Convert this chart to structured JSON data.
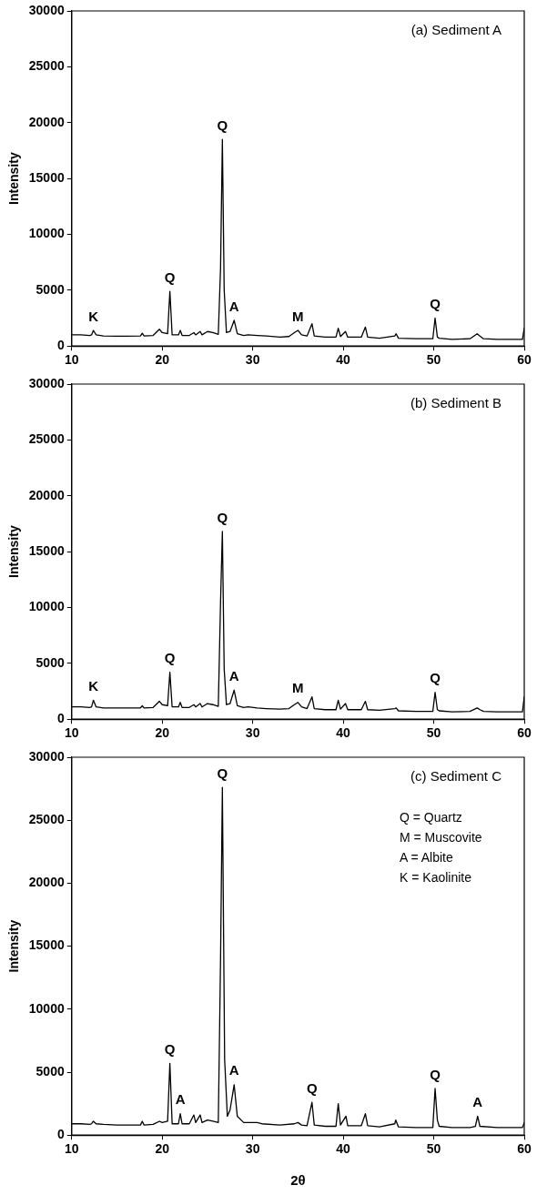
{
  "chart_data": [
    {
      "type": "line",
      "title": "(a) Sediment A",
      "ylabel": "Intensity",
      "xlim": [
        10,
        60
      ],
      "xticks": [
        10,
        20,
        30,
        40,
        50,
        60
      ],
      "ylim": [
        0,
        30000
      ],
      "yticks": [
        0,
        5000,
        10000,
        15000,
        20000,
        25000,
        30000
      ],
      "marker": "none",
      "line_style": "solid",
      "legend": false,
      "annotations": [
        {
          "text": "K",
          "x": 12.4,
          "y": 1400
        },
        {
          "text": "Q",
          "x": 20.85,
          "y": 4900
        },
        {
          "text": "Q",
          "x": 26.65,
          "y": 18500
        },
        {
          "text": "A",
          "x": 27.95,
          "y": 2300
        },
        {
          "text": "M",
          "x": 35,
          "y": 1400
        },
        {
          "text": "Q",
          "x": 50.15,
          "y": 2500
        }
      ],
      "series": [
        {
          "color": "#000000",
          "x": [
            10,
            11,
            12,
            12.2,
            12.4,
            12.7,
            13.5,
            15,
            16,
            17.6,
            17.8,
            18,
            19,
            19.7,
            20,
            20.6,
            20.85,
            21.1,
            21.8,
            22,
            22.2,
            23,
            23.5,
            23.7,
            24.2,
            24.4,
            25,
            25.6,
            26.2,
            26.45,
            26.65,
            26.85,
            27.1,
            27.5,
            27.95,
            28.3,
            29,
            29.5,
            30.5,
            31.5,
            33,
            34,
            34.6,
            35,
            35.4,
            36,
            36.55,
            36.8,
            38,
            39.2,
            39.45,
            39.7,
            40.25,
            40.5,
            42,
            42.45,
            42.7,
            44,
            45.7,
            45.85,
            46.1,
            48,
            49.9,
            50.15,
            50.4,
            50.6,
            52,
            54,
            54.8,
            55.1,
            55.5,
            57,
            59.8,
            60
          ],
          "values": [
            1000,
            1000,
            950,
            1000,
            1400,
            1000,
            900,
            880,
            880,
            900,
            1150,
            900,
            950,
            1500,
            1200,
            1100,
            4900,
            1000,
            1000,
            1400,
            950,
            950,
            1200,
            1000,
            1300,
            1000,
            1300,
            1200,
            1050,
            7000,
            18500,
            5000,
            1200,
            1300,
            2300,
            1100,
            950,
            1000,
            950,
            900,
            800,
            850,
            1200,
            1400,
            1000,
            900,
            2000,
            900,
            800,
            800,
            1600,
            850,
            1300,
            800,
            800,
            1700,
            800,
            700,
            900,
            1100,
            700,
            650,
            650,
            2500,
            800,
            700,
            600,
            650,
            1100,
            900,
            650,
            600,
            600,
            1600
          ]
        }
      ]
    },
    {
      "type": "line",
      "title": "(b) Sediment B",
      "ylabel": "Intensity",
      "xlim": [
        10,
        60
      ],
      "xticks": [
        10,
        20,
        30,
        40,
        50,
        60
      ],
      "ylim": [
        0,
        30000
      ],
      "yticks": [
        0,
        5000,
        10000,
        15000,
        20000,
        25000,
        30000
      ],
      "marker": "none",
      "line_style": "solid",
      "legend": false,
      "annotations": [
        {
          "text": "K",
          "x": 12.4,
          "y": 1700
        },
        {
          "text": "Q",
          "x": 20.85,
          "y": 4200
        },
        {
          "text": "Q",
          "x": 26.65,
          "y": 16800
        },
        {
          "text": "A",
          "x": 27.95,
          "y": 2600
        },
        {
          "text": "M",
          "x": 35,
          "y": 1500
        },
        {
          "text": "Q",
          "x": 50.15,
          "y": 2400
        }
      ],
      "series": [
        {
          "color": "#000000",
          "x": [
            10,
            11,
            12,
            12.2,
            12.4,
            12.7,
            13.5,
            15,
            16,
            17.6,
            17.8,
            18,
            19,
            19.7,
            20,
            20.6,
            20.85,
            21.1,
            21.8,
            22,
            22.2,
            23,
            23.5,
            23.7,
            24.2,
            24.4,
            25,
            25.6,
            26.2,
            26.45,
            26.65,
            26.85,
            27.1,
            27.5,
            27.95,
            28.3,
            29,
            29.5,
            30.5,
            31.5,
            33,
            34,
            34.6,
            35,
            35.4,
            36,
            36.55,
            36.8,
            38,
            39.2,
            39.45,
            39.7,
            40.25,
            40.5,
            42,
            42.45,
            42.7,
            44,
            45.7,
            45.85,
            46.1,
            48,
            49.9,
            50.15,
            50.4,
            50.6,
            52,
            54,
            54.8,
            55.1,
            55.5,
            57,
            59.8,
            60
          ],
          "values": [
            1100,
            1100,
            1050,
            1100,
            1700,
            1100,
            1000,
            1000,
            1000,
            1000,
            1200,
            1000,
            1050,
            1600,
            1300,
            1200,
            4200,
            1100,
            1100,
            1500,
            1050,
            1050,
            1300,
            1100,
            1400,
            1100,
            1400,
            1300,
            1150,
            10500,
            16800,
            4500,
            1300,
            1400,
            2600,
            1200,
            1050,
            1100,
            1000,
            950,
            900,
            950,
            1300,
            1500,
            1100,
            950,
            2000,
            950,
            850,
            850,
            1700,
            900,
            1400,
            850,
            850,
            1600,
            850,
            800,
            950,
            1000,
            750,
            700,
            700,
            2400,
            850,
            750,
            650,
            700,
            1000,
            850,
            700,
            650,
            650,
            2000
          ]
        }
      ]
    },
    {
      "type": "line",
      "title": "(c) Sediment C",
      "xlabel": "2θ",
      "ylabel": "Intensity",
      "xlim": [
        10,
        60
      ],
      "xticks": [
        10,
        20,
        30,
        40,
        50,
        60
      ],
      "ylim": [
        0,
        30000
      ],
      "yticks": [
        0,
        5000,
        10000,
        15000,
        20000,
        25000,
        30000
      ],
      "marker": "none",
      "line_style": "solid",
      "legend": false,
      "annotations": [
        "Q = Quartz",
        "M = Muscovite",
        "A = Albite",
        "K = Kaolinite",
        {
          "text": "Q",
          "x": 20.85,
          "y": 5700
        },
        {
          "text": "A",
          "x": 22,
          "y": 1700
        },
        {
          "text": "Q",
          "x": 26.65,
          "y": 27600
        },
        {
          "text": "A",
          "x": 27.95,
          "y": 4000
        },
        {
          "text": "Q",
          "x": 36.55,
          "y": 2600
        },
        {
          "text": "Q",
          "x": 50.15,
          "y": 3700
        },
        {
          "text": "A",
          "x": 54.85,
          "y": 1500
        }
      ],
      "series": [
        {
          "color": "#000000",
          "x": [
            10,
            11,
            12,
            12.2,
            12.4,
            12.7,
            13.5,
            15,
            16,
            17.6,
            17.8,
            18,
            19,
            19.7,
            20,
            20.6,
            20.85,
            21.1,
            21.8,
            22,
            22.2,
            23,
            23.5,
            23.7,
            24.2,
            24.4,
            25,
            25.6,
            26.2,
            26.45,
            26.65,
            26.9,
            27.2,
            27.5,
            27.95,
            28.3,
            29,
            30.5,
            31,
            33,
            34.6,
            35,
            35.4,
            36,
            36.55,
            36.8,
            38,
            39.2,
            39.45,
            39.7,
            40.3,
            40.5,
            42,
            42.45,
            42.7,
            44,
            45.7,
            45.8,
            46.1,
            48,
            49.9,
            50.15,
            50.4,
            50.6,
            52,
            54,
            54.6,
            54.85,
            55.1,
            57,
            59.8,
            60
          ],
          "values": [
            900,
            900,
            850,
            900,
            1100,
            900,
            850,
            800,
            800,
            800,
            1100,
            800,
            850,
            1100,
            1000,
            1100,
            5700,
            900,
            900,
            1700,
            900,
            900,
            1600,
            1000,
            1600,
            1000,
            1200,
            1100,
            1000,
            14000,
            27600,
            6000,
            1500,
            2000,
            4000,
            1500,
            1000,
            1000,
            900,
            800,
            900,
            1000,
            800,
            750,
            2600,
            800,
            700,
            700,
            2500,
            800,
            1500,
            750,
            750,
            1700,
            750,
            650,
            900,
            1200,
            650,
            600,
            600,
            3700,
            1200,
            700,
            600,
            600,
            700,
            1500,
            700,
            600,
            600,
            1000
          ]
        }
      ]
    }
  ]
}
